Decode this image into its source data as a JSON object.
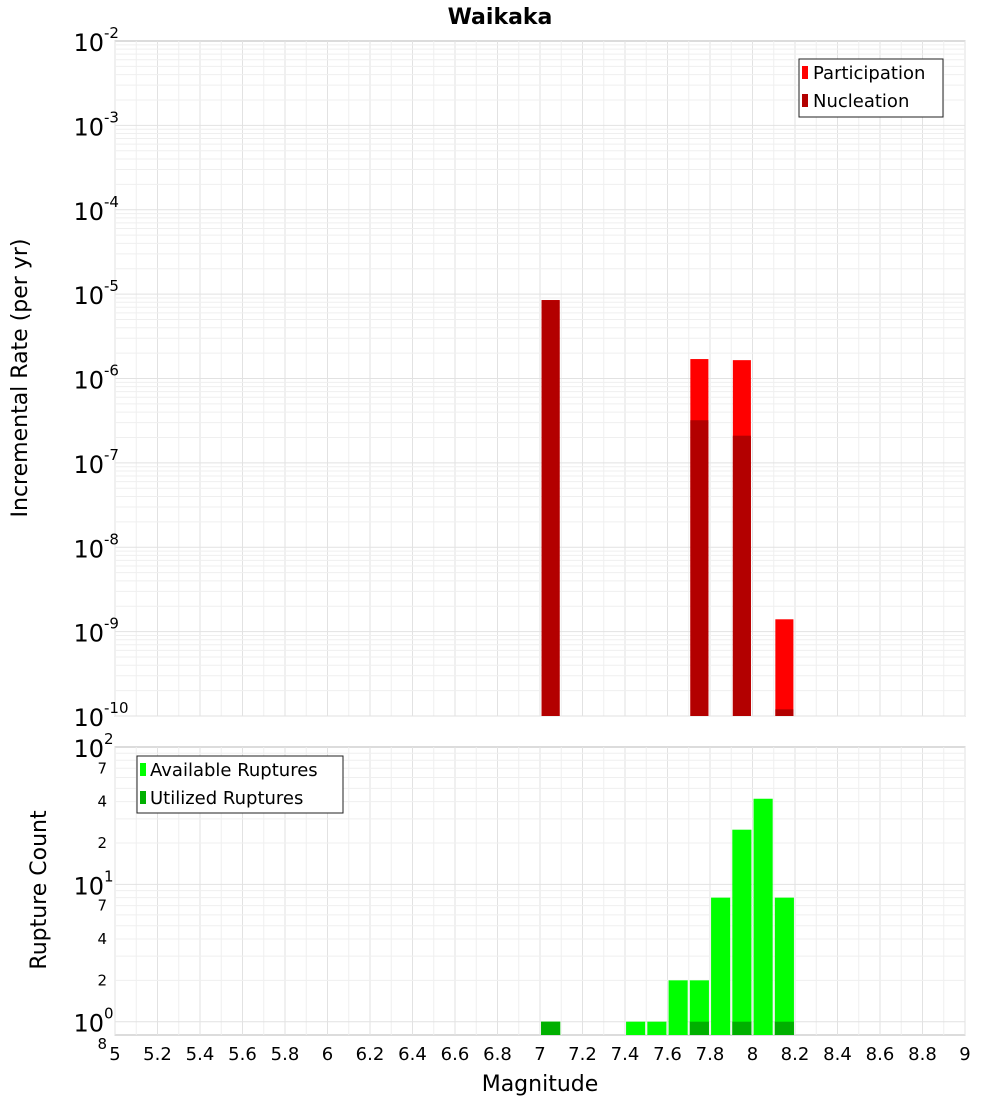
{
  "chart_data": [
    {
      "type": "bar",
      "title": "Waikaka",
      "xlabel": "",
      "ylabel": "Incremental Rate (per yr)",
      "yscale": "log",
      "ylim": [
        1e-10,
        0.01
      ],
      "xlim": [
        5,
        9
      ],
      "bin_width": 0.1,
      "y_tick_exponents": [
        "-10",
        "-9",
        "-8",
        "-7",
        "-6",
        "-5",
        "-4",
        "-3",
        "-2"
      ],
      "legend": {
        "placement": "top-right",
        "entries": [
          "Participation",
          "Nucleation"
        ]
      },
      "grid": true,
      "series": [
        {
          "name": "Participation",
          "color": "#ff0000",
          "points": [
            {
              "x": 7.05,
              "y": 8.5e-06
            },
            {
              "x": 7.75,
              "y": 1.7e-06
            },
            {
              "x": 7.95,
              "y": 1.65e-06
            },
            {
              "x": 8.15,
              "y": 1.4e-09
            }
          ]
        },
        {
          "name": "Nucleation",
          "color": "#b30000",
          "points": [
            {
              "x": 7.05,
              "y": 8.5e-06
            },
            {
              "x": 7.75,
              "y": 3.2e-07
            },
            {
              "x": 7.95,
              "y": 2.1e-07
            },
            {
              "x": 8.15,
              "y": 1.2e-10
            }
          ]
        }
      ]
    },
    {
      "type": "bar",
      "title": "",
      "xlabel": "Magnitude",
      "ylabel": "Rupture Count",
      "yscale": "log",
      "ylim": [
        0.8,
        100
      ],
      "xlim": [
        5,
        9
      ],
      "bin_width": 0.1,
      "x_ticks": [
        "5",
        "5.2",
        "5.4",
        "5.6",
        "5.8",
        "6",
        "6.2",
        "6.4",
        "6.6",
        "6.8",
        "7",
        "7.2",
        "7.4",
        "7.6",
        "7.8",
        "8",
        "8.2",
        "8.4",
        "8.6",
        "8.8",
        "9"
      ],
      "y_major_ticks": [
        {
          "value": 1,
          "exponent": "0"
        },
        {
          "value": 10,
          "exponent": "1"
        },
        {
          "value": 100,
          "exponent": "2"
        }
      ],
      "y_minor_ticks": [
        {
          "value": 2,
          "label": "2"
        },
        {
          "value": 4,
          "label": "4"
        },
        {
          "value": 7,
          "label": "7"
        },
        {
          "value": 20,
          "label": "2"
        },
        {
          "value": 40,
          "label": "4"
        },
        {
          "value": 70,
          "label": "7"
        },
        {
          "value": 0.8,
          "label": "8"
        }
      ],
      "legend": {
        "placement": "top-left",
        "entries": [
          "Available Ruptures",
          "Utilized Ruptures"
        ]
      },
      "grid": true,
      "series": [
        {
          "name": "Available Ruptures",
          "color": "#00ff00",
          "points": [
            {
              "x": 7.05,
              "y": 1
            },
            {
              "x": 7.45,
              "y": 1
            },
            {
              "x": 7.55,
              "y": 1
            },
            {
              "x": 7.65,
              "y": 2
            },
            {
              "x": 7.75,
              "y": 2
            },
            {
              "x": 7.85,
              "y": 8
            },
            {
              "x": 7.95,
              "y": 25
            },
            {
              "x": 8.05,
              "y": 42
            },
            {
              "x": 8.15,
              "y": 8
            }
          ]
        },
        {
          "name": "Utilized Ruptures",
          "color": "#00b000",
          "points": [
            {
              "x": 7.05,
              "y": 1
            },
            {
              "x": 7.75,
              "y": 1
            },
            {
              "x": 7.95,
              "y": 1
            },
            {
              "x": 8.15,
              "y": 1
            }
          ]
        }
      ]
    }
  ]
}
